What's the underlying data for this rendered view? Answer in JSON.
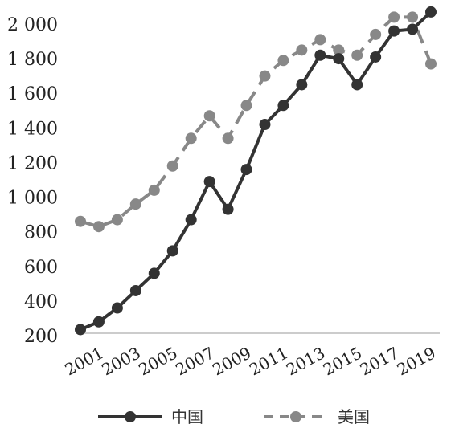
{
  "chart_data": {
    "type": "line",
    "title": "",
    "xlabel": "",
    "ylabel": "",
    "x": [
      2001,
      2002,
      2003,
      2004,
      2005,
      2006,
      2007,
      2008,
      2009,
      2010,
      2011,
      2012,
      2013,
      2014,
      2015,
      2016,
      2017,
      2018,
      2019,
      2020
    ],
    "x_tick_labels": [
      "2001",
      "2003",
      "2005",
      "2007",
      "2009",
      "2011",
      "2013",
      "2015",
      "2017",
      "2019"
    ],
    "y_tick_labels": [
      "200",
      "400",
      "600",
      "800",
      "1 000",
      "1 200",
      "1 400",
      "1 600",
      "1 800",
      "2 000"
    ],
    "ylim": [
      200,
      2080
    ],
    "y_ticks": [
      200,
      400,
      600,
      800,
      1000,
      1200,
      1400,
      1600,
      1800,
      2000
    ],
    "grid": false,
    "legend_position": "bottom",
    "series": [
      {
        "name": "中国",
        "color": "#333333",
        "style": "solid",
        "values": [
          235,
          280,
          360,
          460,
          560,
          690,
          870,
          1090,
          930,
          1160,
          1420,
          1530,
          1650,
          1820,
          1800,
          1650,
          1810,
          1960,
          1970,
          2070
        ]
      },
      {
        "name": "美国",
        "color": "#888888",
        "style": "dashed",
        "values": [
          860,
          830,
          870,
          960,
          1040,
          1180,
          1340,
          1470,
          1340,
          1530,
          1700,
          1790,
          1850,
          1910,
          1850,
          1820,
          1940,
          2040,
          2040,
          1770
        ]
      }
    ]
  }
}
